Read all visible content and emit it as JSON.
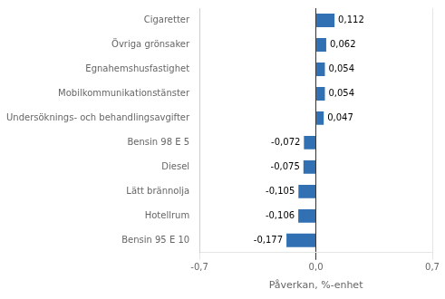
{
  "chart_data": {
    "type": "bar",
    "orientation": "horizontal",
    "categories": [
      "Bensin 95 E 10",
      "Hotellrum",
      "Lätt brännolja",
      "Diesel",
      "Bensin 98 E 5",
      "Undersöknings- och behandlingsavgifter",
      "Mobilkommunikationstänster",
      "Egnahemshusfastighet",
      "Övriga grönsaker",
      "Cigaretter"
    ],
    "values": [
      -0.177,
      -0.106,
      -0.105,
      -0.075,
      -0.072,
      0.047,
      0.054,
      0.054,
      0.062,
      0.112
    ],
    "value_labels": [
      "-0,177",
      "-0,106",
      "-0,105",
      "-0,075",
      "-0,072",
      "0,047",
      "0,054",
      "0,054",
      "0,062",
      "0,112"
    ],
    "data_labels": true,
    "color": "#3070B3",
    "xlabel": "Påverkan, %-enhet",
    "xlim": [
      -0.7,
      0.7
    ],
    "xticks": [
      {
        "value": -0.7,
        "label": "-0,7"
      },
      {
        "value": 0.0,
        "label": "0,0"
      },
      {
        "value": 0.7,
        "label": "0,7"
      }
    ],
    "grid": true
  }
}
